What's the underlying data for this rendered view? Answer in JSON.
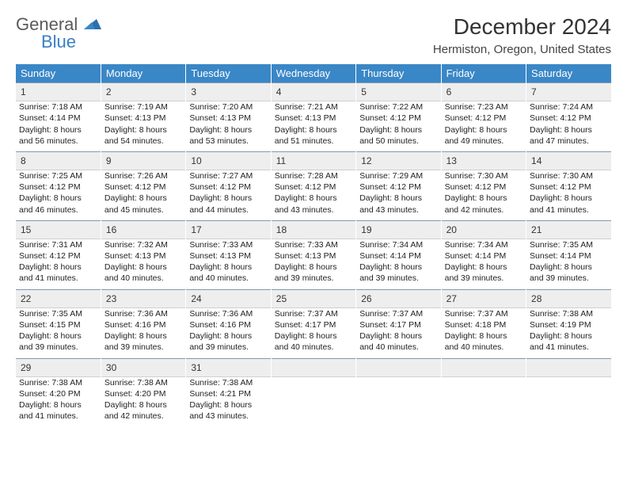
{
  "logo": {
    "line1": "General",
    "line2": "Blue"
  },
  "title": "December 2024",
  "location": "Hermiston, Oregon, United States",
  "colors": {
    "header_bg": "#3a87c7",
    "header_text": "#ffffff",
    "daynum_bg": "#eeeeee",
    "daynum_border_top": "#7a9bb5",
    "logo_gray": "#5a5a5a",
    "logo_blue": "#3a7fc4"
  },
  "weekdays": [
    "Sunday",
    "Monday",
    "Tuesday",
    "Wednesday",
    "Thursday",
    "Friday",
    "Saturday"
  ],
  "days": [
    {
      "n": "1",
      "sunrise": "Sunrise: 7:18 AM",
      "sunset": "Sunset: 4:14 PM",
      "daylight": "Daylight: 8 hours and 56 minutes."
    },
    {
      "n": "2",
      "sunrise": "Sunrise: 7:19 AM",
      "sunset": "Sunset: 4:13 PM",
      "daylight": "Daylight: 8 hours and 54 minutes."
    },
    {
      "n": "3",
      "sunrise": "Sunrise: 7:20 AM",
      "sunset": "Sunset: 4:13 PM",
      "daylight": "Daylight: 8 hours and 53 minutes."
    },
    {
      "n": "4",
      "sunrise": "Sunrise: 7:21 AM",
      "sunset": "Sunset: 4:13 PM",
      "daylight": "Daylight: 8 hours and 51 minutes."
    },
    {
      "n": "5",
      "sunrise": "Sunrise: 7:22 AM",
      "sunset": "Sunset: 4:12 PM",
      "daylight": "Daylight: 8 hours and 50 minutes."
    },
    {
      "n": "6",
      "sunrise": "Sunrise: 7:23 AM",
      "sunset": "Sunset: 4:12 PM",
      "daylight": "Daylight: 8 hours and 49 minutes."
    },
    {
      "n": "7",
      "sunrise": "Sunrise: 7:24 AM",
      "sunset": "Sunset: 4:12 PM",
      "daylight": "Daylight: 8 hours and 47 minutes."
    },
    {
      "n": "8",
      "sunrise": "Sunrise: 7:25 AM",
      "sunset": "Sunset: 4:12 PM",
      "daylight": "Daylight: 8 hours and 46 minutes."
    },
    {
      "n": "9",
      "sunrise": "Sunrise: 7:26 AM",
      "sunset": "Sunset: 4:12 PM",
      "daylight": "Daylight: 8 hours and 45 minutes."
    },
    {
      "n": "10",
      "sunrise": "Sunrise: 7:27 AM",
      "sunset": "Sunset: 4:12 PM",
      "daylight": "Daylight: 8 hours and 44 minutes."
    },
    {
      "n": "11",
      "sunrise": "Sunrise: 7:28 AM",
      "sunset": "Sunset: 4:12 PM",
      "daylight": "Daylight: 8 hours and 43 minutes."
    },
    {
      "n": "12",
      "sunrise": "Sunrise: 7:29 AM",
      "sunset": "Sunset: 4:12 PM",
      "daylight": "Daylight: 8 hours and 43 minutes."
    },
    {
      "n": "13",
      "sunrise": "Sunrise: 7:30 AM",
      "sunset": "Sunset: 4:12 PM",
      "daylight": "Daylight: 8 hours and 42 minutes."
    },
    {
      "n": "14",
      "sunrise": "Sunrise: 7:30 AM",
      "sunset": "Sunset: 4:12 PM",
      "daylight": "Daylight: 8 hours and 41 minutes."
    },
    {
      "n": "15",
      "sunrise": "Sunrise: 7:31 AM",
      "sunset": "Sunset: 4:12 PM",
      "daylight": "Daylight: 8 hours and 41 minutes."
    },
    {
      "n": "16",
      "sunrise": "Sunrise: 7:32 AM",
      "sunset": "Sunset: 4:13 PM",
      "daylight": "Daylight: 8 hours and 40 minutes."
    },
    {
      "n": "17",
      "sunrise": "Sunrise: 7:33 AM",
      "sunset": "Sunset: 4:13 PM",
      "daylight": "Daylight: 8 hours and 40 minutes."
    },
    {
      "n": "18",
      "sunrise": "Sunrise: 7:33 AM",
      "sunset": "Sunset: 4:13 PM",
      "daylight": "Daylight: 8 hours and 39 minutes."
    },
    {
      "n": "19",
      "sunrise": "Sunrise: 7:34 AM",
      "sunset": "Sunset: 4:14 PM",
      "daylight": "Daylight: 8 hours and 39 minutes."
    },
    {
      "n": "20",
      "sunrise": "Sunrise: 7:34 AM",
      "sunset": "Sunset: 4:14 PM",
      "daylight": "Daylight: 8 hours and 39 minutes."
    },
    {
      "n": "21",
      "sunrise": "Sunrise: 7:35 AM",
      "sunset": "Sunset: 4:14 PM",
      "daylight": "Daylight: 8 hours and 39 minutes."
    },
    {
      "n": "22",
      "sunrise": "Sunrise: 7:35 AM",
      "sunset": "Sunset: 4:15 PM",
      "daylight": "Daylight: 8 hours and 39 minutes."
    },
    {
      "n": "23",
      "sunrise": "Sunrise: 7:36 AM",
      "sunset": "Sunset: 4:16 PM",
      "daylight": "Daylight: 8 hours and 39 minutes."
    },
    {
      "n": "24",
      "sunrise": "Sunrise: 7:36 AM",
      "sunset": "Sunset: 4:16 PM",
      "daylight": "Daylight: 8 hours and 39 minutes."
    },
    {
      "n": "25",
      "sunrise": "Sunrise: 7:37 AM",
      "sunset": "Sunset: 4:17 PM",
      "daylight": "Daylight: 8 hours and 40 minutes."
    },
    {
      "n": "26",
      "sunrise": "Sunrise: 7:37 AM",
      "sunset": "Sunset: 4:17 PM",
      "daylight": "Daylight: 8 hours and 40 minutes."
    },
    {
      "n": "27",
      "sunrise": "Sunrise: 7:37 AM",
      "sunset": "Sunset: 4:18 PM",
      "daylight": "Daylight: 8 hours and 40 minutes."
    },
    {
      "n": "28",
      "sunrise": "Sunrise: 7:38 AM",
      "sunset": "Sunset: 4:19 PM",
      "daylight": "Daylight: 8 hours and 41 minutes."
    },
    {
      "n": "29",
      "sunrise": "Sunrise: 7:38 AM",
      "sunset": "Sunset: 4:20 PM",
      "daylight": "Daylight: 8 hours and 41 minutes."
    },
    {
      "n": "30",
      "sunrise": "Sunrise: 7:38 AM",
      "sunset": "Sunset: 4:20 PM",
      "daylight": "Daylight: 8 hours and 42 minutes."
    },
    {
      "n": "31",
      "sunrise": "Sunrise: 7:38 AM",
      "sunset": "Sunset: 4:21 PM",
      "daylight": "Daylight: 8 hours and 43 minutes."
    }
  ]
}
